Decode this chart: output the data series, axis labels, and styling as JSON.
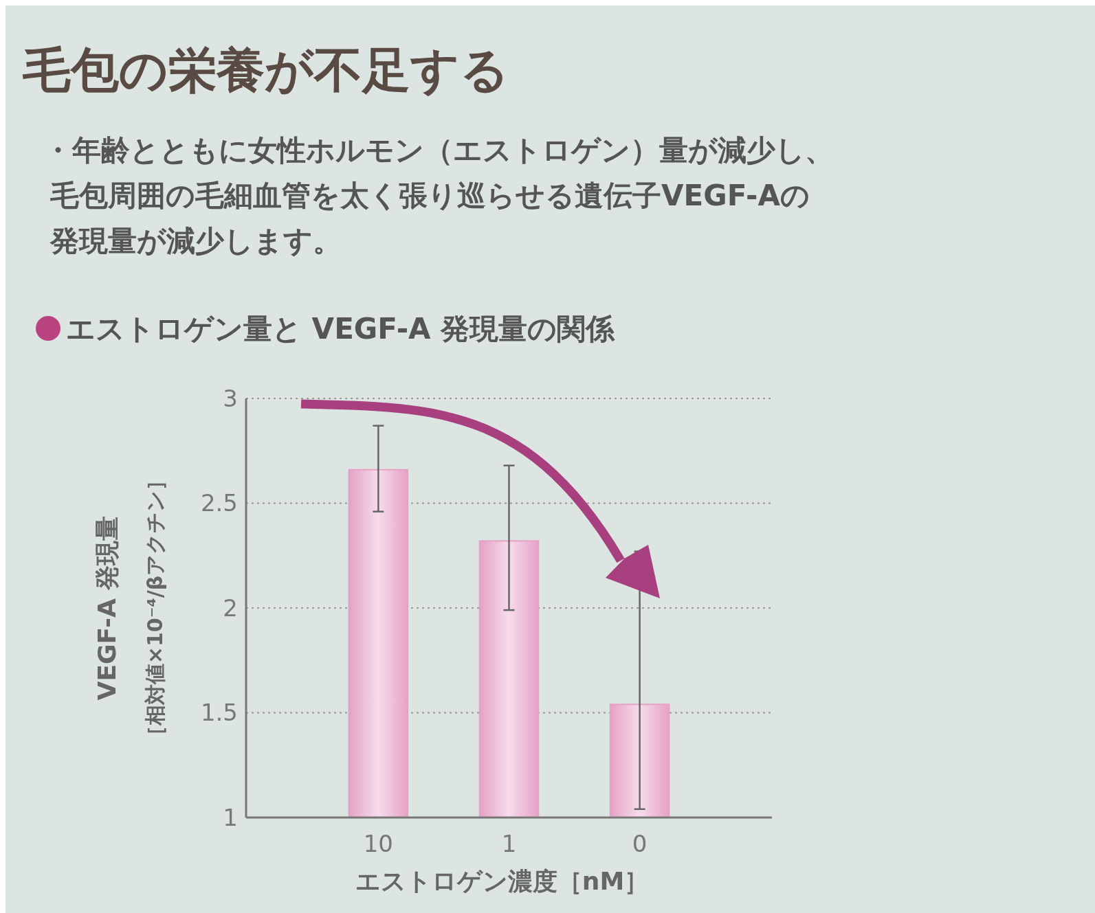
{
  "chart_data": {
    "type": "bar",
    "title": "毛包の栄養が不足する",
    "subtitle": "・年齢とともに女性ホルモン（エストロゲン）量が減少し、毛包周囲の毛細血管を太く張り巡らせる遺伝子VEGF-Aの発現量が減少します。",
    "annotations": [
      "エストロゲン量と VEGF-A 発現量の関係"
    ],
    "xlabel": "エストロゲン濃度［nM］",
    "ylabel": "VEGF-A 発現量［相対値×10⁻⁴/βアクチン］",
    "categories": [
      "10",
      "1",
      "0"
    ],
    "values": [
      2.66,
      2.32,
      1.54
    ],
    "errors": [
      [
        2.46,
        2.87
      ],
      [
        1.99,
        2.68
      ],
      [
        1.04,
        2.27
      ]
    ],
    "color": "#e6a1c6",
    "ylim": [
      1,
      3
    ],
    "yticks": [
      1,
      1.5,
      2,
      2.5,
      3
    ],
    "grid": "y"
  }
}
